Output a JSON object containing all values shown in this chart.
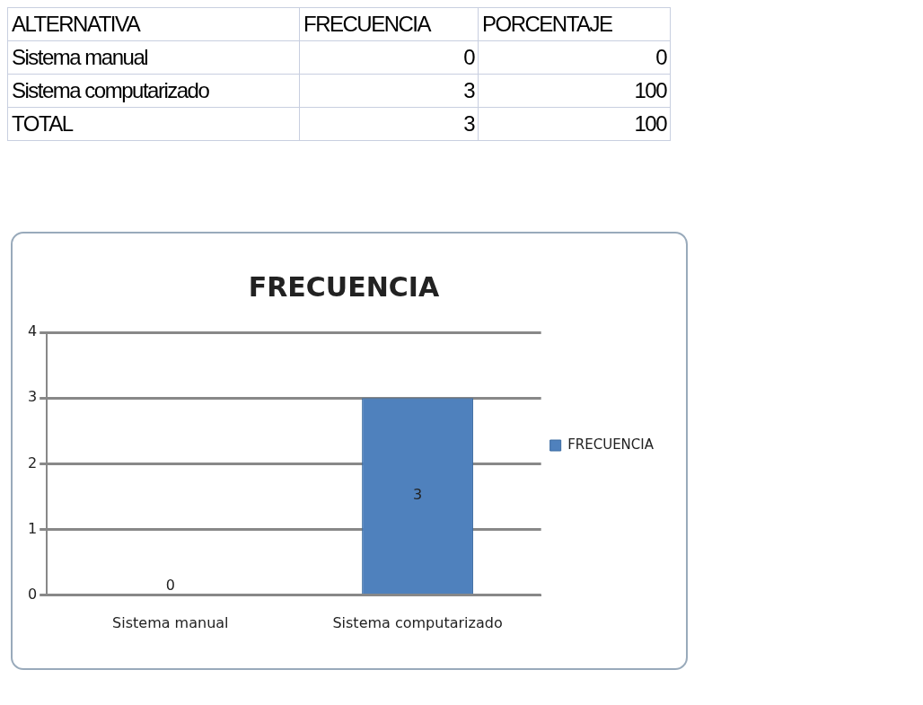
{
  "chart_data": [
    {
      "type": "other",
      "annotations": [
        "ALTERNATIVA",
        "FRECUENCIA",
        "PORCENTAJE",
        "Sistema manual",
        "0",
        "0",
        "Sistema computarizado",
        "3",
        "100",
        "TOTAL",
        "3",
        "100"
      ]
    },
    {
      "type": "bar",
      "title": "FRECUENCIA",
      "categories": [
        "Sistema manual",
        "Sistema computarizado"
      ],
      "series": [
        {
          "name": "FRECUENCIA",
          "color": "#4f81bd",
          "values": [
            0,
            3
          ]
        }
      ],
      "ylim": [
        0,
        4
      ],
      "yticks": [
        0,
        1,
        2,
        3,
        4
      ],
      "grid": "y",
      "legend": "right",
      "data_labels": true
    }
  ]
}
